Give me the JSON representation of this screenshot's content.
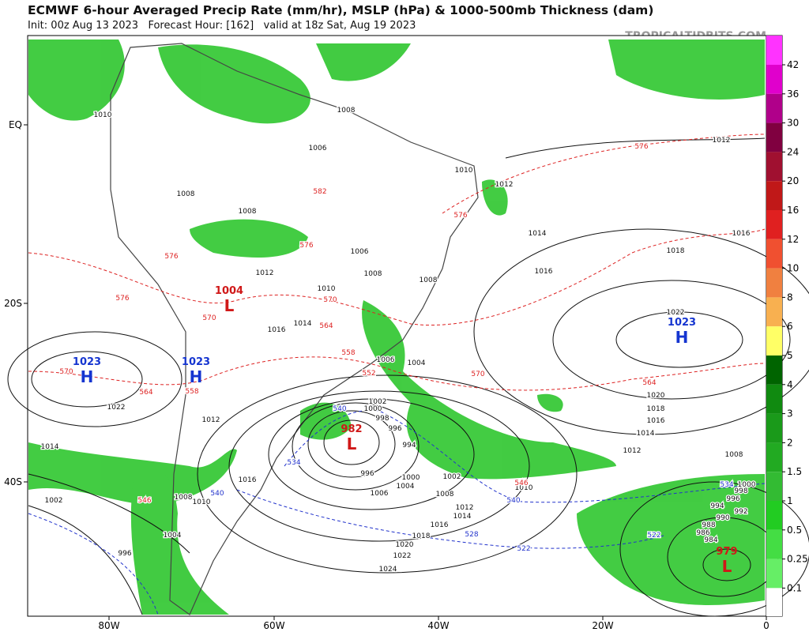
{
  "header": {
    "title": "ECMWF 6-hour Averaged Precip Rate (mm/hr), MSLP (hPa) & 1000-500mb Thickness (dam)",
    "subtitle": "Init: 00z Aug 13 2023   Forecast Hour: [162]   valid at 18z Sat, Aug 19 2023",
    "source": "TROPICALTIDBITS.COM"
  },
  "map": {
    "lat_labels": [
      "EQ",
      "20S",
      "40S"
    ],
    "lon_labels": [
      "80W",
      "60W",
      "40W",
      "20W",
      "0"
    ],
    "colorbar_ticks": [
      42,
      36,
      30,
      24,
      20,
      16,
      12,
      10,
      8,
      6,
      5,
      4,
      3,
      2,
      1.5,
      1,
      0.5,
      0.25,
      0.1
    ],
    "centers": [
      {
        "letter": "H",
        "value": 1023
      },
      {
        "letter": "H",
        "value": 1023
      },
      {
        "letter": "H",
        "value": 1023
      },
      {
        "letter": "L",
        "value": 982
      },
      {
        "letter": "L",
        "value": 979
      },
      {
        "letter": "L",
        "value": 1004
      }
    ],
    "isobar_labels": [
      1010,
      1008,
      1008,
      1006,
      1008,
      1010,
      1012,
      1012,
      1014,
      1016,
      1018,
      1016,
      1022,
      1020,
      1018,
      1016,
      1014,
      1012,
      1008,
      1006,
      1008,
      1008,
      1012,
      1010,
      1016,
      1014,
      1006,
      1004,
      1002,
      1000,
      998,
      996,
      994,
      996,
      1000,
      1002,
      1004,
      1006,
      1008,
      1010,
      1012,
      1014,
      1016,
      1018,
      1020,
      1022,
      1024,
      1022,
      1014,
      1012,
      1016,
      1010,
      1008,
      1002,
      996,
      1004,
      1000,
      998,
      996,
      994,
      992,
      990,
      988,
      986,
      984
    ],
    "thickness_red_labels": [
      576,
      582,
      576,
      576,
      576,
      570,
      564,
      558,
      552,
      570,
      564,
      570,
      564,
      558,
      576,
      570,
      546,
      546
    ],
    "thickness_blue_labels": [
      540,
      534,
      540,
      540,
      528,
      522,
      534,
      522
    ]
  }
}
